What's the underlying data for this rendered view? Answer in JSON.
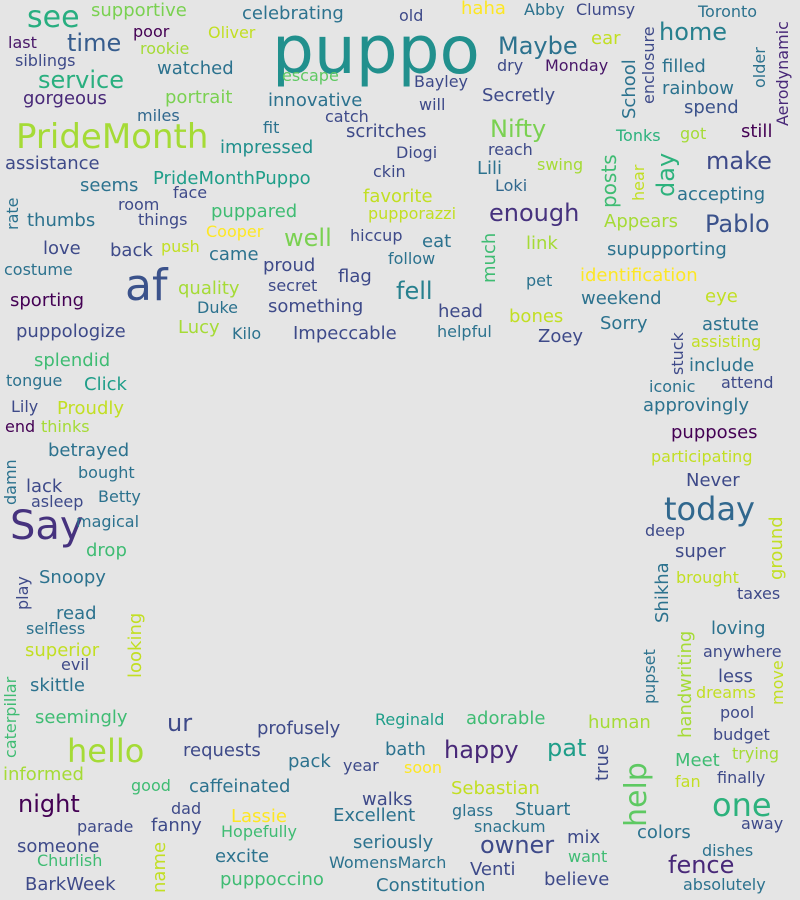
{
  "words": [
    {
      "text": "puppo",
      "color": "#21908d"
    },
    {
      "text": "af",
      "color": "#3b528b"
    },
    {
      "text": "Say",
      "color": "#46327e"
    },
    {
      "text": "PrideMonth",
      "color": "#a5db36"
    },
    {
      "text": "today",
      "color": "#31688e"
    },
    {
      "text": "one",
      "color": "#2db27d"
    },
    {
      "text": "hello",
      "color": "#a5db36"
    },
    {
      "text": "help",
      "color": "#5ec962"
    },
    {
      "text": "see",
      "color": "#28ae80"
    },
    {
      "text": "time",
      "color": "#365c8d"
    },
    {
      "text": "service",
      "color": "#29af7f"
    },
    {
      "text": "Maybe",
      "color": "#2c728e"
    },
    {
      "text": "home",
      "color": "#27808e"
    },
    {
      "text": "Nifty",
      "color": "#7ad151"
    },
    {
      "text": "make",
      "color": "#3e4a89"
    },
    {
      "text": "enough",
      "color": "#46327e"
    },
    {
      "text": "Pablo",
      "color": "#3b528b"
    },
    {
      "text": "well",
      "color": "#7ad151"
    },
    {
      "text": "fell",
      "color": "#27808e"
    },
    {
      "text": "night",
      "color": "#440154"
    },
    {
      "text": "happy",
      "color": "#482878"
    },
    {
      "text": "pat",
      "color": "#1f9e89"
    },
    {
      "text": "owner",
      "color": "#3e4a89"
    },
    {
      "text": "fence",
      "color": "#482878"
    },
    {
      "text": "ur",
      "color": "#3e4a89"
    },
    {
      "text": "day",
      "color": "#2db27d"
    },
    {
      "text": "posts",
      "color": "#3fbc73"
    },
    {
      "text": "supportive",
      "color": "#7ad151"
    },
    {
      "text": "celebrating",
      "color": "#2c728e"
    },
    {
      "text": "old",
      "color": "#3e4a89"
    },
    {
      "text": "haha",
      "color": "#fde725"
    },
    {
      "text": "Abby",
      "color": "#2c728e"
    },
    {
      "text": "Clumsy",
      "color": "#3e4a89"
    },
    {
      "text": "Toronto",
      "color": "#2c728e"
    },
    {
      "text": "last",
      "color": "#481668"
    },
    {
      "text": "poor",
      "color": "#440154"
    },
    {
      "text": "Oliver",
      "color": "#c2df23"
    },
    {
      "text": "rookie",
      "color": "#a5db36"
    },
    {
      "text": "siblings",
      "color": "#3e4a89"
    },
    {
      "text": "watched",
      "color": "#2c728e"
    },
    {
      "text": "escape",
      "color": "#5ec962"
    },
    {
      "text": "Bayley",
      "color": "#3e4a89"
    },
    {
      "text": "dry",
      "color": "#3e4a89"
    },
    {
      "text": "Monday",
      "color": "#481668"
    },
    {
      "text": "filled",
      "color": "#2c728e"
    },
    {
      "text": "rainbow",
      "color": "#2c728e"
    },
    {
      "text": "gorgeous",
      "color": "#482878"
    },
    {
      "text": "portrait",
      "color": "#7ad151"
    },
    {
      "text": "innovative",
      "color": "#2c728e"
    },
    {
      "text": "will",
      "color": "#3e4a89"
    },
    {
      "text": "Secretly",
      "color": "#3e4a89"
    },
    {
      "text": "spend",
      "color": "#3b528b"
    },
    {
      "text": "miles",
      "color": "#31688e"
    },
    {
      "text": "catch",
      "color": "#3e4a89"
    },
    {
      "text": "fit",
      "color": "#2c728e"
    },
    {
      "text": "scritches",
      "color": "#3e4a89"
    },
    {
      "text": "still",
      "color": "#440154"
    },
    {
      "text": "Tonks",
      "color": "#2db27d"
    },
    {
      "text": "got",
      "color": "#a5db36"
    },
    {
      "text": "impressed",
      "color": "#21908d"
    },
    {
      "text": "Diogi",
      "color": "#3e4a89"
    },
    {
      "text": "reach",
      "color": "#3e4a89"
    },
    {
      "text": "assistance",
      "color": "#3e4a89"
    },
    {
      "text": "ckin",
      "color": "#3e4a89"
    },
    {
      "text": "swing",
      "color": "#a5db36"
    },
    {
      "text": "Lili",
      "color": "#2c728e"
    },
    {
      "text": "Loki",
      "color": "#31688e"
    },
    {
      "text": "PrideMonthPuppo",
      "color": "#1f9e89"
    },
    {
      "text": "seems",
      "color": "#2c728e"
    },
    {
      "text": "face",
      "color": "#3e4a89"
    },
    {
      "text": "favorite",
      "color": "#c2df23"
    },
    {
      "text": "accepting",
      "color": "#2c728e"
    },
    {
      "text": "room",
      "color": "#3e4a89"
    },
    {
      "text": "things",
      "color": "#3e4a89"
    },
    {
      "text": "puppared",
      "color": "#3fbc73"
    },
    {
      "text": "pupporazzi",
      "color": "#c2df23"
    },
    {
      "text": "Appears",
      "color": "#a5db36"
    },
    {
      "text": "thumbs",
      "color": "#2c728e"
    },
    {
      "text": "Cooper",
      "color": "#fde725"
    },
    {
      "text": "hiccup",
      "color": "#3e4a89"
    },
    {
      "text": "eat",
      "color": "#2c728e"
    },
    {
      "text": "link",
      "color": "#a5db36"
    },
    {
      "text": "supupporting",
      "color": "#2c728e"
    },
    {
      "text": "love",
      "color": "#3e4a89"
    },
    {
      "text": "back",
      "color": "#3e4a89"
    },
    {
      "text": "push",
      "color": "#c2df23"
    },
    {
      "text": "came",
      "color": "#2c728e"
    },
    {
      "text": "follow",
      "color": "#2c728e"
    },
    {
      "text": "costume",
      "color": "#2c728e"
    },
    {
      "text": "proud",
      "color": "#3e4a89"
    },
    {
      "text": "pet",
      "color": "#2c728e"
    },
    {
      "text": "identification",
      "color": "#fde725"
    },
    {
      "text": "quality",
      "color": "#a5db36"
    },
    {
      "text": "secret",
      "color": "#3e4a89"
    },
    {
      "text": "flag",
      "color": "#3e4a89"
    },
    {
      "text": "sporting",
      "color": "#440154"
    },
    {
      "text": "something",
      "color": "#3e4a89"
    },
    {
      "text": "eye",
      "color": "#c2df23"
    },
    {
      "text": "weekend",
      "color": "#2c728e"
    },
    {
      "text": "Duke",
      "color": "#2c728e"
    },
    {
      "text": "head",
      "color": "#3e4a89"
    },
    {
      "text": "bones",
      "color": "#c2df23"
    },
    {
      "text": "Sorry",
      "color": "#2c728e"
    },
    {
      "text": "astute",
      "color": "#2c728e"
    },
    {
      "text": "puppologize",
      "color": "#3e4a89"
    },
    {
      "text": "Lucy",
      "color": "#a5db36"
    },
    {
      "text": "Kilo",
      "color": "#2c728e"
    },
    {
      "text": "Impeccable",
      "color": "#3e4a89"
    },
    {
      "text": "helpful",
      "color": "#2c728e"
    },
    {
      "text": "Zoey",
      "color": "#3e4a89"
    },
    {
      "text": "assisting",
      "color": "#c2df23"
    },
    {
      "text": "splendid",
      "color": "#3fbc73"
    },
    {
      "text": "include",
      "color": "#2c728e"
    },
    {
      "text": "tongue",
      "color": "#2c728e"
    },
    {
      "text": "Click",
      "color": "#1f9e89"
    },
    {
      "text": "iconic",
      "color": "#2c728e"
    },
    {
      "text": "attend",
      "color": "#3e4a89"
    },
    {
      "text": "Proudly",
      "color": "#c2df23"
    },
    {
      "text": "Lily",
      "color": "#3e4a89"
    },
    {
      "text": "approvingly",
      "color": "#2c728e"
    },
    {
      "text": "end",
      "color": "#440154"
    },
    {
      "text": "thinks",
      "color": "#a5db36"
    },
    {
      "text": "pupposes",
      "color": "#440154"
    },
    {
      "text": "betrayed",
      "color": "#2c728e"
    },
    {
      "text": "participating",
      "color": "#c2df23"
    },
    {
      "text": "bought",
      "color": "#2c728e"
    },
    {
      "text": "lack",
      "color": "#3e4a89"
    },
    {
      "text": "Never",
      "color": "#3e4a89"
    },
    {
      "text": "Betty",
      "color": "#2c728e"
    },
    {
      "text": "asleep",
      "color": "#3e4a89"
    },
    {
      "text": "magical",
      "color": "#2c728e"
    },
    {
      "text": "deep",
      "color": "#3e4a89"
    },
    {
      "text": "drop",
      "color": "#3fbc73"
    },
    {
      "text": "super",
      "color": "#3e4a89"
    },
    {
      "text": "Snoopy",
      "color": "#2c728e"
    },
    {
      "text": "brought",
      "color": "#c2df23"
    },
    {
      "text": "taxes",
      "color": "#3e4a89"
    },
    {
      "text": "read",
      "color": "#2c728e"
    },
    {
      "text": "selfless",
      "color": "#2c728e"
    },
    {
      "text": "loving",
      "color": "#2c728e"
    },
    {
      "text": "superior",
      "color": "#c2df23"
    },
    {
      "text": "evil",
      "color": "#3e4a89"
    },
    {
      "text": "anywhere",
      "color": "#3e4a89"
    },
    {
      "text": "skittle",
      "color": "#2c728e"
    },
    {
      "text": "less",
      "color": "#3e4a89"
    },
    {
      "text": "dreams",
      "color": "#c2df23"
    },
    {
      "text": "pool",
      "color": "#3e4a89"
    },
    {
      "text": "seemingly",
      "color": "#3fbc73"
    },
    {
      "text": "Reginald",
      "color": "#1f9e89"
    },
    {
      "text": "adorable",
      "color": "#3fbc73"
    },
    {
      "text": "profusely",
      "color": "#3e4a89"
    },
    {
      "text": "human",
      "color": "#a5db36"
    },
    {
      "text": "budget",
      "color": "#3e4a89"
    },
    {
      "text": "requests",
      "color": "#3e4a89"
    },
    {
      "text": "bath",
      "color": "#2c728e"
    },
    {
      "text": "trying",
      "color": "#a5db36"
    },
    {
      "text": "pack",
      "color": "#2c728e"
    },
    {
      "text": "year",
      "color": "#3e4a89"
    },
    {
      "text": "soon",
      "color": "#fde725"
    },
    {
      "text": "Meet",
      "color": "#3fbc73"
    },
    {
      "text": "finally",
      "color": "#3e4a89"
    },
    {
      "text": "informed",
      "color": "#a5db36"
    },
    {
      "text": "fan",
      "color": "#c2df23"
    },
    {
      "text": "good",
      "color": "#3fbc73"
    },
    {
      "text": "caffeinated",
      "color": "#2c728e"
    },
    {
      "text": "Sebastian",
      "color": "#c2df23"
    },
    {
      "text": "walks",
      "color": "#3e4a89"
    },
    {
      "text": "away",
      "color": "#3e4a89"
    },
    {
      "text": "glass",
      "color": "#2c728e"
    },
    {
      "text": "Stuart",
      "color": "#2c728e"
    },
    {
      "text": "dad",
      "color": "#3e4a89"
    },
    {
      "text": "Lassie",
      "color": "#fde725"
    },
    {
      "text": "Excellent",
      "color": "#2c728e"
    },
    {
      "text": "parade",
      "color": "#3e4a89"
    },
    {
      "text": "fanny",
      "color": "#3e4a89"
    },
    {
      "text": "Hopefully",
      "color": "#3fbc73"
    },
    {
      "text": "snackum",
      "color": "#2c728e"
    },
    {
      "text": "colors",
      "color": "#2c728e"
    },
    {
      "text": "mix",
      "color": "#3e4a89"
    },
    {
      "text": "someone",
      "color": "#3e4a89"
    },
    {
      "text": "seriously",
      "color": "#2c728e"
    },
    {
      "text": "dishes",
      "color": "#2c728e"
    },
    {
      "text": "excite",
      "color": "#2c728e"
    },
    {
      "text": "want",
      "color": "#3fbc73"
    },
    {
      "text": "Churlish",
      "color": "#3fbc73"
    },
    {
      "text": "WomensMarch",
      "color": "#2c728e"
    },
    {
      "text": "Venti",
      "color": "#3e4a89"
    },
    {
      "text": "puppoccino",
      "color": "#3fbc73"
    },
    {
      "text": "believe",
      "color": "#3e4a89"
    },
    {
      "text": "BarkWeek",
      "color": "#3e4a89"
    },
    {
      "text": "Constitution",
      "color": "#2c728e"
    },
    {
      "text": "absolutely",
      "color": "#2c728e"
    },
    {
      "text": "ear",
      "color": "#c2df23"
    },
    {
      "text": "School",
      "color": "#2c728e"
    },
    {
      "text": "enclosure",
      "color": "#3e4a89"
    },
    {
      "text": "older",
      "color": "#2c728e"
    },
    {
      "text": "Aerodynamic",
      "color": "#482878"
    },
    {
      "text": "hear",
      "color": "#c2df23"
    },
    {
      "text": "much",
      "color": "#3fbc73"
    },
    {
      "text": "rate",
      "color": "#2c728e"
    },
    {
      "text": "stuck",
      "color": "#3e4a89"
    },
    {
      "text": "damn",
      "color": "#2c728e"
    },
    {
      "text": "ground",
      "color": "#c2df23"
    },
    {
      "text": "Shikha",
      "color": "#2c728e"
    },
    {
      "text": "play",
      "color": "#3e4a89"
    },
    {
      "text": "looking",
      "color": "#c2df23"
    },
    {
      "text": "handwriting",
      "color": "#a5db36"
    },
    {
      "text": "pupset",
      "color": "#2c728e"
    },
    {
      "text": "move",
      "color": "#c2df23"
    },
    {
      "text": "caterpillar",
      "color": "#3fbc73"
    },
    {
      "text": "true",
      "color": "#3e4a89"
    },
    {
      "text": "name",
      "color": "#c2df23"
    }
  ]
}
